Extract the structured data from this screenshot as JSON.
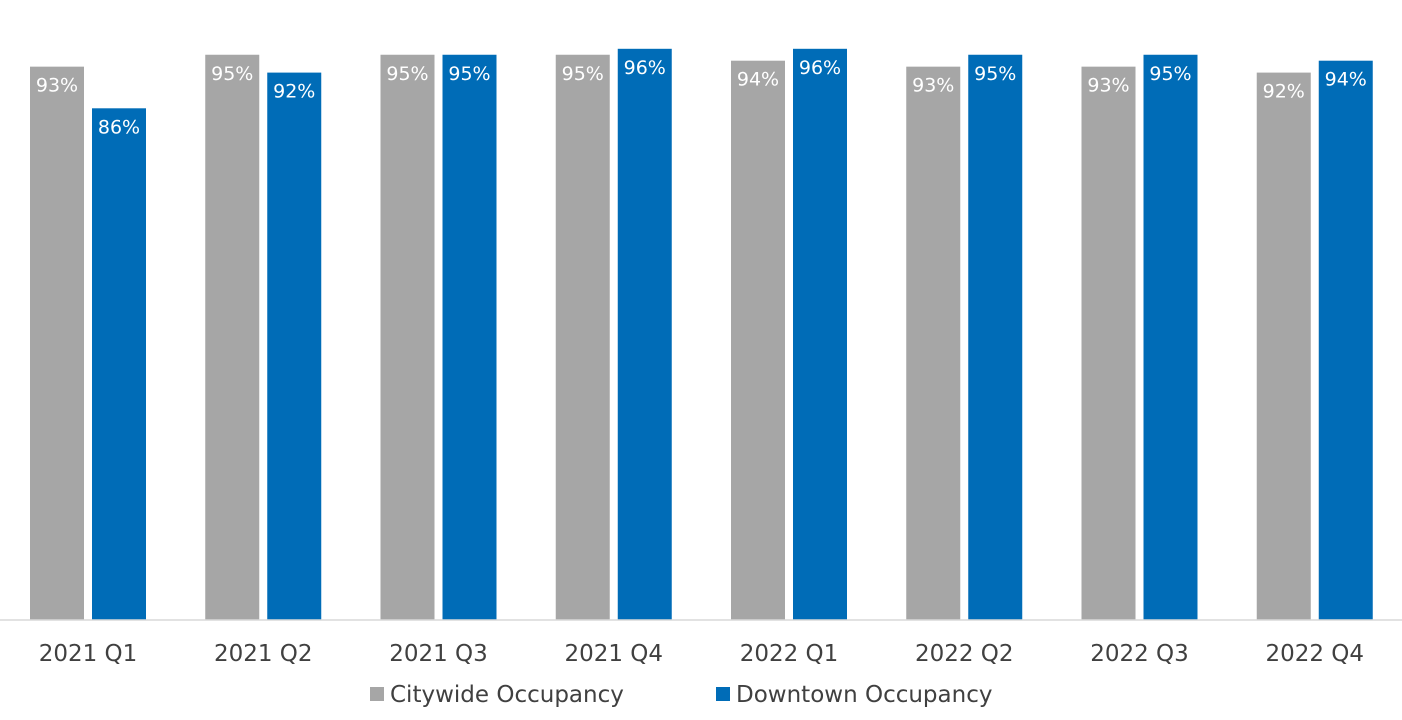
{
  "chart_data": {
    "type": "bar",
    "title": "",
    "xlabel": "",
    "ylabel": "",
    "ylim": [
      0,
      100
    ],
    "grid": false,
    "legend_position": "bottom",
    "categories": [
      "2021 Q1",
      "2021 Q2",
      "2021 Q3",
      "2021 Q4",
      "2022 Q1",
      "2022 Q2",
      "2022 Q3",
      "2022 Q4"
    ],
    "series": [
      {
        "name": "Citywide Occupancy",
        "color": "#a6a6a6",
        "values": [
          93,
          95,
          95,
          95,
          94,
          93,
          93,
          92
        ],
        "labels": [
          "93%",
          "95%",
          "95%",
          "95%",
          "94%",
          "93%",
          "93%",
          "92%"
        ]
      },
      {
        "name": "Downtown Occupancy",
        "color": "#006cb7",
        "values": [
          86,
          92,
          95,
          96,
          96,
          95,
          95,
          94
        ],
        "labels": [
          "86%",
          "92%",
          "95%",
          "96%",
          "96%",
          "95%",
          "95%",
          "94%"
        ]
      }
    ]
  }
}
